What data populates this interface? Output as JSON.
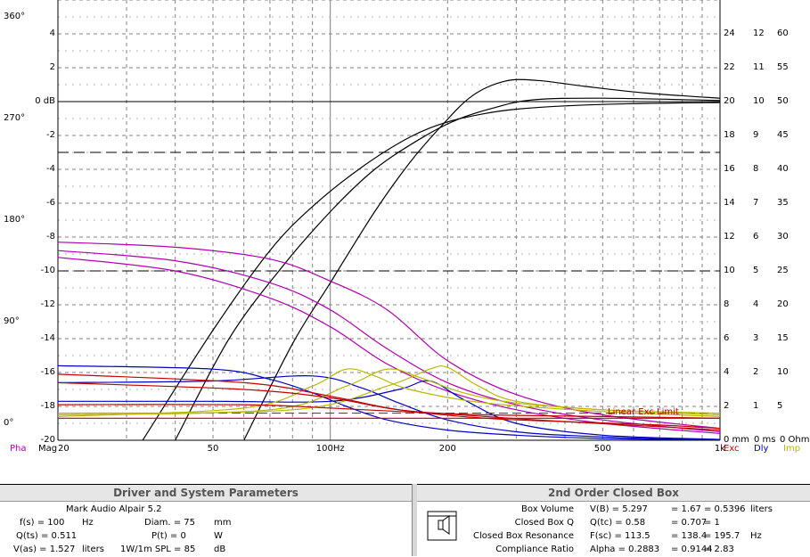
{
  "colors": {
    "grid": "#808080",
    "magnitude": "#000000",
    "phase": "#b000b0",
    "excursion": "#c00000",
    "delay": "#0000c0",
    "impedance": "#b8b800"
  },
  "left_axis": {
    "db_ticks": [
      {
        "v": 4,
        "t": "4"
      },
      {
        "v": 2,
        "t": "2"
      },
      {
        "v": 0,
        "t": "0 dB"
      },
      {
        "v": -2,
        "t": "-2"
      },
      {
        "v": -4,
        "t": "-4"
      },
      {
        "v": -6,
        "t": "-6"
      },
      {
        "v": -8,
        "t": "-8"
      },
      {
        "v": -10,
        "t": "-10"
      },
      {
        "v": -12,
        "t": "-12"
      },
      {
        "v": -14,
        "t": "-14"
      },
      {
        "v": -16,
        "t": "-16"
      },
      {
        "v": -18,
        "t": "-18"
      },
      {
        "v": -20,
        "t": "-20"
      }
    ],
    "phase_ticks": [
      {
        "v": 5,
        "t": "360°"
      },
      {
        "v": -1,
        "t": "270°"
      },
      {
        "v": -7,
        "t": "180°"
      },
      {
        "v": -13,
        "t": "90°"
      },
      {
        "v": -19,
        "t": "0°"
      }
    ]
  },
  "right_axis": {
    "rows": [
      {
        "v": 4,
        "a": "24",
        "b": "12",
        "c": "60"
      },
      {
        "v": 2,
        "a": "22",
        "b": "11",
        "c": "55"
      },
      {
        "v": 0,
        "a": "20",
        "b": "10",
        "c": "50"
      },
      {
        "v": -2,
        "a": "18",
        "b": "9",
        "c": "45"
      },
      {
        "v": -4,
        "a": "16",
        "b": "8",
        "c": "40"
      },
      {
        "v": -6,
        "a": "14",
        "b": "7",
        "c": "35"
      },
      {
        "v": -8,
        "a": "12",
        "b": "6",
        "c": "30"
      },
      {
        "v": -10,
        "a": "10",
        "b": "5",
        "c": "25"
      },
      {
        "v": -12,
        "a": "8",
        "b": "4",
        "c": "20"
      },
      {
        "v": -14,
        "a": "6",
        "b": "3",
        "c": "15"
      },
      {
        "v": -16,
        "a": "4",
        "b": "2",
        "c": "10"
      },
      {
        "v": -18,
        "a": "2",
        "b": "1",
        "c": "5"
      }
    ],
    "bottom": {
      "a": "0 mm",
      "b": "0 ms",
      "c": "0 Ohm"
    }
  },
  "x_axis": {
    "ticks": [
      {
        "f": 50,
        "t": "50"
      },
      {
        "f": 100,
        "t": "100Hz"
      },
      {
        "f": 200,
        "t": "200"
      },
      {
        "f": 500,
        "t": "500"
      },
      {
        "f": 1000,
        "t": "1k"
      }
    ],
    "legend": {
      "pha": "Pha",
      "mag": "Mag",
      "start": "20",
      "exc": "Exc",
      "dly": "Dly",
      "imp": "Imp"
    }
  },
  "annotations": {
    "linear_exc_limit": "Linear Exc Limit"
  },
  "chart_data": {
    "type": "line",
    "x_scale": "log",
    "xlim": [
      20,
      1000
    ],
    "ylim": [
      -20,
      4
    ],
    "ylabel": "dB",
    "reference_lines": [
      {
        "style": "dashed",
        "y": -3
      },
      {
        "style": "dashed",
        "y": -10
      }
    ],
    "series": [
      {
        "group": "magnitude",
        "x": [
          33,
          50,
          70,
          90,
          120,
          160,
          200,
          250,
          300,
          400,
          600,
          1000
        ],
        "y": [
          -20,
          -13.5,
          -8.8,
          -6.2,
          -3.9,
          -2.1,
          -1.2,
          -0.7,
          -0.45,
          -0.25,
          -0.12,
          -0.05
        ]
      },
      {
        "group": "magnitude",
        "x": [
          40,
          55,
          75,
          100,
          130,
          170,
          210,
          260,
          330,
          500,
          1000
        ],
        "y": [
          -20,
          -14,
          -9.8,
          -6.5,
          -4,
          -2.2,
          -1.1,
          -0.4,
          0.1,
          0.2,
          0.07
        ]
      },
      {
        "group": "magnitude",
        "x": [
          60,
          80,
          100,
          130,
          160,
          190,
          230,
          280,
          340,
          450,
          650,
          1000
        ],
        "y": [
          -20,
          -14.3,
          -10.7,
          -6.5,
          -3.6,
          -1.6,
          0.3,
          1.2,
          1.25,
          0.9,
          0.5,
          0.2
        ]
      },
      {
        "group": "phase",
        "x": [
          20,
          40,
          70,
          100,
          140,
          200,
          300,
          500,
          1000
        ],
        "y": [
          -8.3,
          -8.6,
          -9.3,
          -10.6,
          -12.3,
          -15.3,
          -17.3,
          -18.5,
          -19.3
        ]
      },
      {
        "group": "phase",
        "x": [
          20,
          40,
          70,
          100,
          140,
          200,
          300,
          500,
          1000
        ],
        "y": [
          -8.8,
          -9.4,
          -10.7,
          -12.3,
          -14.6,
          -16.6,
          -17.9,
          -18.8,
          -19.5
        ]
      },
      {
        "group": "phase",
        "x": [
          20,
          40,
          70,
          100,
          140,
          200,
          300,
          500,
          1000
        ],
        "y": [
          -9.2,
          -10,
          -11.6,
          -13.3,
          -15.5,
          -17.1,
          -18.2,
          -19,
          -19.6
        ]
      },
      {
        "group": "delay",
        "x": [
          20,
          50,
          70,
          90,
          110,
          140,
          200,
          300,
          500,
          1000
        ],
        "y": [
          -15.6,
          -15.8,
          -16.4,
          -17.2,
          -18,
          -18.8,
          -19.4,
          -19.7,
          -19.9,
          -20
        ]
      },
      {
        "group": "delay",
        "x": [
          20,
          50,
          90,
          120,
          150,
          200,
          300,
          500,
          1000
        ],
        "y": [
          -16.6,
          -16.5,
          -16.2,
          -16.9,
          -17.8,
          -18.8,
          -19.5,
          -19.8,
          -20
        ]
      },
      {
        "group": "delay",
        "x": [
          20,
          50,
          100,
          150,
          180,
          220,
          300,
          500,
          1000
        ],
        "y": [
          -17.7,
          -17.7,
          -17.7,
          -17,
          -16.5,
          -17.6,
          -19,
          -19.7,
          -19.95
        ]
      },
      {
        "group": "impedance",
        "x": [
          20,
          60,
          90,
          110,
          130,
          160,
          250,
          500,
          1000
        ],
        "y": [
          -18.6,
          -18.1,
          -16.8,
          -15.8,
          -16.2,
          -17,
          -17.8,
          -18.3,
          -18.6
        ]
      },
      {
        "group": "impedance",
        "x": [
          20,
          70,
          110,
          140,
          170,
          220,
          300,
          500,
          1000
        ],
        "y": [
          -18.5,
          -18.2,
          -16.8,
          -15.8,
          -16.3,
          -17.2,
          -17.8,
          -18.2,
          -18.5
        ]
      },
      {
        "group": "impedance",
        "x": [
          20,
          80,
          140,
          180,
          200,
          240,
          300,
          500,
          1000
        ],
        "y": [
          -18.4,
          -18.2,
          -16.8,
          -15.8,
          -15.7,
          -16.8,
          -17.7,
          -18.2,
          -18.4
        ]
      },
      {
        "group": "excursion",
        "x": [
          20,
          60,
          100,
          150,
          250,
          400,
          700,
          1000
        ],
        "y": [
          -16.6,
          -17,
          -17.5,
          -18.2,
          -18.6,
          -18.9,
          -19.2,
          -19.4
        ]
      },
      {
        "group": "excursion",
        "x": [
          20,
          60,
          100,
          150,
          250,
          400,
          700,
          1000
        ],
        "y": [
          -16.1,
          -16.6,
          -17.4,
          -18.2,
          -18.7,
          -18.9,
          -19.1,
          -19.3
        ]
      },
      {
        "group": "excursion",
        "x": [
          20,
          1000
        ],
        "y": [
          -18.7,
          -18.7
        ]
      },
      {
        "group": "excursion",
        "x": [
          20,
          60,
          100,
          150,
          250,
          500,
          1000
        ],
        "y": [
          -17.9,
          -17.9,
          -18.1,
          -18.3,
          -18.5,
          -18.6,
          -18.7
        ]
      }
    ]
  },
  "driver_panel": {
    "title": "Driver and System Parameters",
    "model": "Mark Audio  Alpair 5.2",
    "rows": [
      {
        "l1": "f(s) = 100",
        "u1": "Hz",
        "l2": "Diam. = 75",
        "u2": "mm"
      },
      {
        "l1": "Q(ts) = 0.511",
        "u1": "",
        "l2": "P(t) = 0",
        "u2": "W"
      },
      {
        "l1": "V(as) = 1.527",
        "u1": "liters",
        "l2": "1W/1m SPL = 85",
        "u2": "dB"
      }
    ]
  },
  "box_panel": {
    "title": "2nd Order Closed Box",
    "rows": [
      {
        "label": "Box Volume",
        "c1": "V(B) = 5.297",
        "c2": "= 1.67",
        "c3": "= 0.5396",
        "unit": "liters"
      },
      {
        "label": "Closed Box Q",
        "c1": "Q(tc) = 0.58",
        "c2": "= 0.707",
        "c3": "= 1",
        "unit": ""
      },
      {
        "label": "Closed Box Resonance",
        "c1": "F(sc) = 113.5",
        "c2": "= 138.4",
        "c3": "= 195.7",
        "unit": "Hz"
      },
      {
        "label": "Compliance Ratio",
        "c1": "Alpha = 0.2883",
        "c2": "= 0.9144",
        "c3": "= 2.83",
        "unit": ""
      }
    ]
  }
}
